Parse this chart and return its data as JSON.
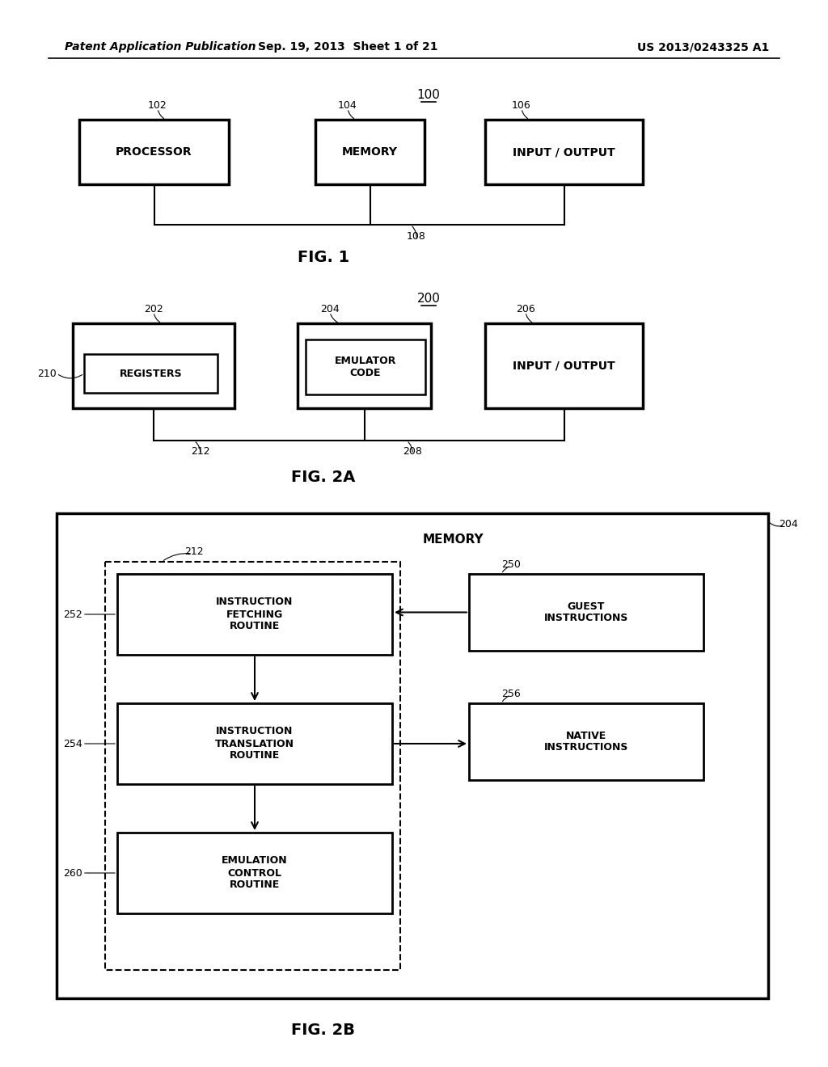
{
  "header_left": "Patent Application Publication",
  "header_mid": "Sep. 19, 2013  Sheet 1 of 21",
  "header_right": "US 2013/0243325 A1",
  "bg_color": "#ffffff"
}
